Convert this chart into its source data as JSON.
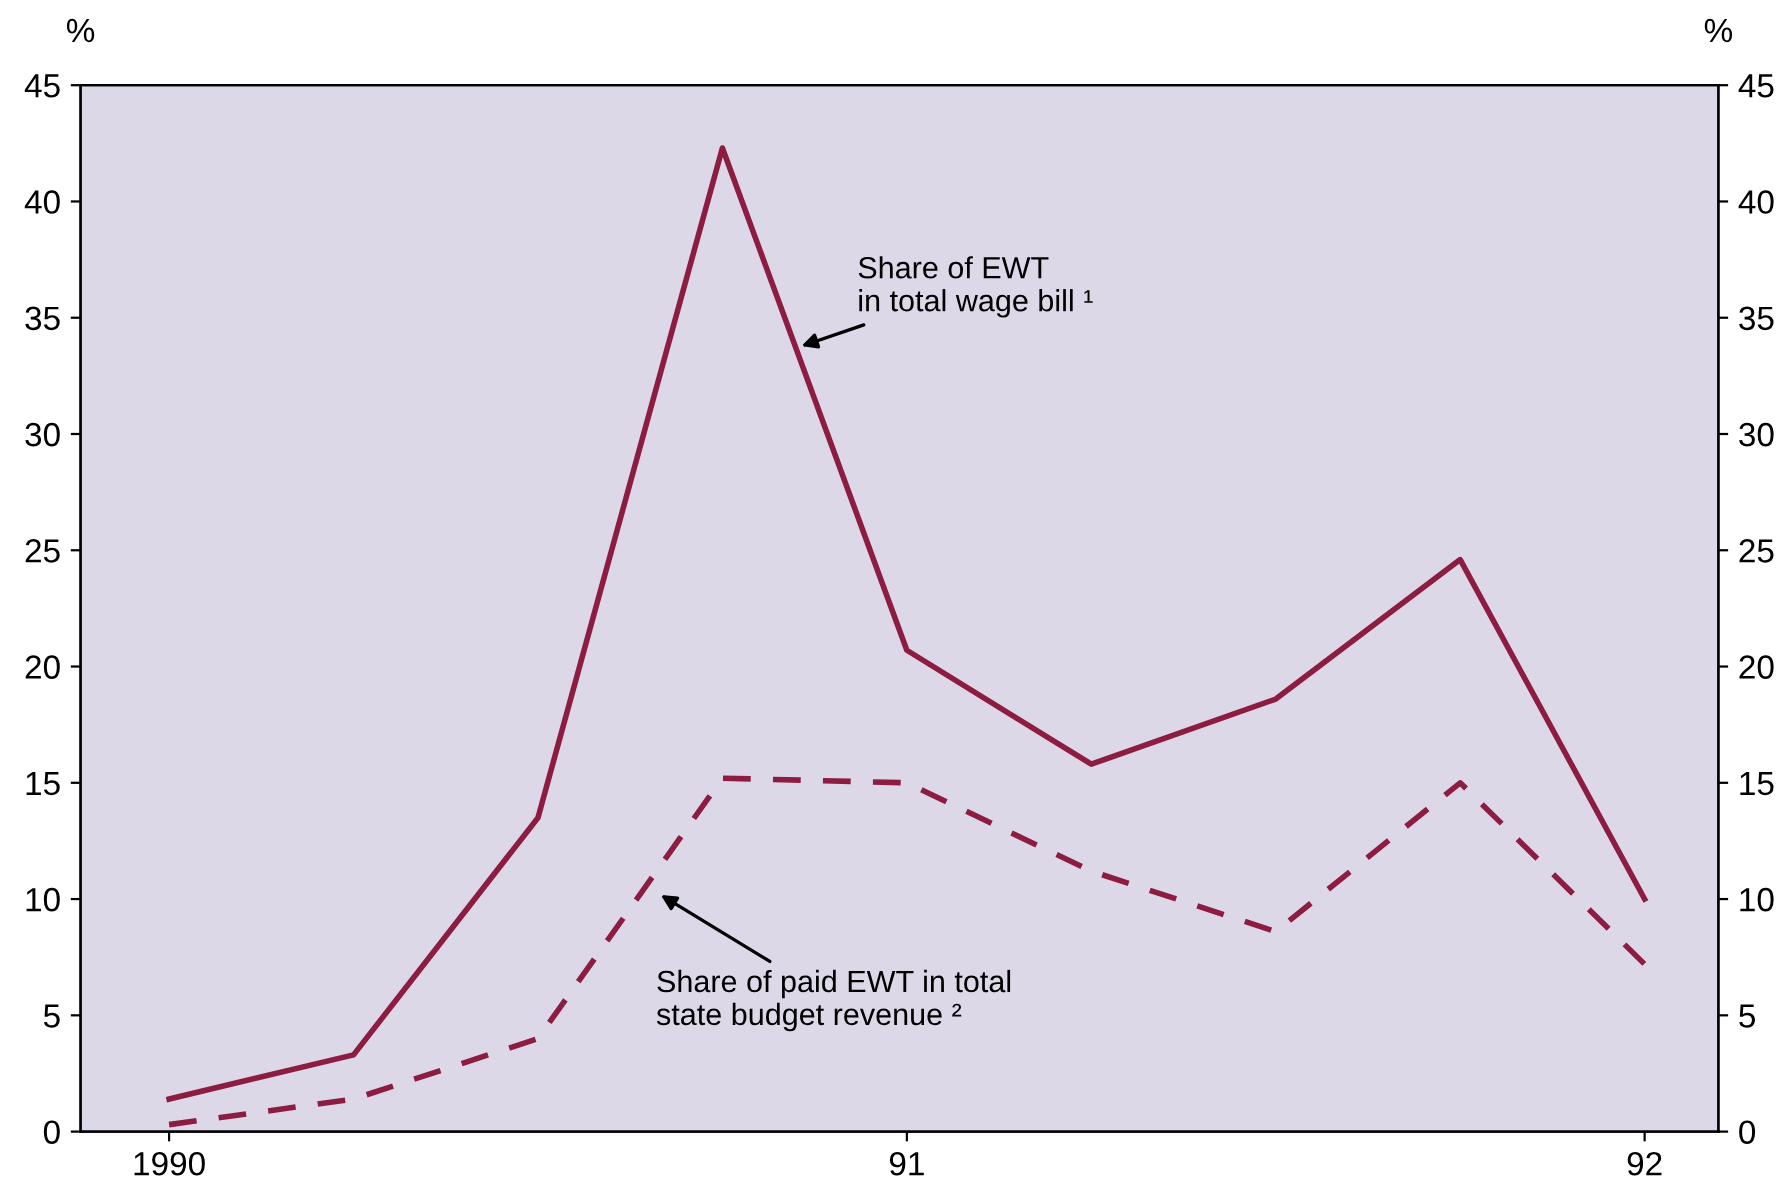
{
  "chart_data": {
    "type": "line",
    "ylabel": "%",
    "y2label": "%",
    "x": [
      1990,
      1990.25,
      1990.5,
      1990.75,
      1991,
      1991.25,
      1991.5,
      1991.75,
      1992
    ],
    "series": [
      {
        "color": "#8c1d40",
        "line_style": "solid",
        "values": [
          1.4,
          3.3,
          13.5,
          42.3,
          20.7,
          15.8,
          18.6,
          24.6,
          10.0
        ]
      },
      {
        "color": "#8c1d40",
        "line_style": "dashed",
        "values": [
          0.3,
          1.4,
          4.0,
          15.2,
          15.0,
          11.2,
          8.6,
          15.0,
          7.2
        ]
      }
    ],
    "xlim": [
      1989.88,
      1992.1
    ],
    "xticks": [
      1990,
      {
        "value": 1991,
        "label": "91"
      },
      {
        "value": 1992,
        "label": "92"
      }
    ],
    "ylim": [
      0,
      45
    ],
    "yticks": [
      0,
      5,
      10,
      15,
      20,
      25,
      30,
      35,
      40,
      45
    ],
    "y2lim": [
      0,
      45
    ],
    "y2ticks": [
      0,
      5,
      10,
      15,
      20,
      25,
      30,
      35,
      40,
      45
    ],
    "annotations": [
      {
        "text": "Share of EWT\nin total wage bill ¹",
        "x": 1990.85,
        "y": 33.7
      },
      {
        "text": "Share of paid EWT in total\nstate budget revenue ²",
        "x": 1990.66,
        "y": 10.3
      }
    ],
    "grid": false,
    "legend": false,
    "marker": "none"
  }
}
